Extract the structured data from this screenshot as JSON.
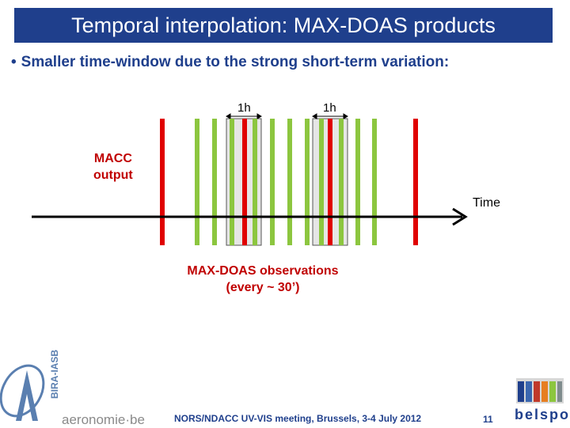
{
  "header": {
    "title": "Temporal interpolation: MAX-DOAS products"
  },
  "bullet": {
    "text": "Smaller time-window due to the strong short-term variation:"
  },
  "diagram": {
    "macc_label_line1": "MACC",
    "macc_label_line2": "output",
    "time_label": "Time",
    "window_label_1": "1h",
    "window_label_2": "1h",
    "obs_label_line1": "MAX-DOAS observations",
    "obs_label_line2": "(every ~ 30’)"
  },
  "footer": {
    "meeting": "NORS/NDACC UV-VIS meeting, Brussels, 3-4 July 2012",
    "page": "11",
    "aeronomie": "aeronomie·be",
    "bira": "BIRA-IASB",
    "belspo": "belspo"
  },
  "colors": {
    "title_bg": "#1f3f8c",
    "macc_red": "#e00000",
    "obs_green": "#8cc63f",
    "text_blue": "#1f3f8c"
  }
}
